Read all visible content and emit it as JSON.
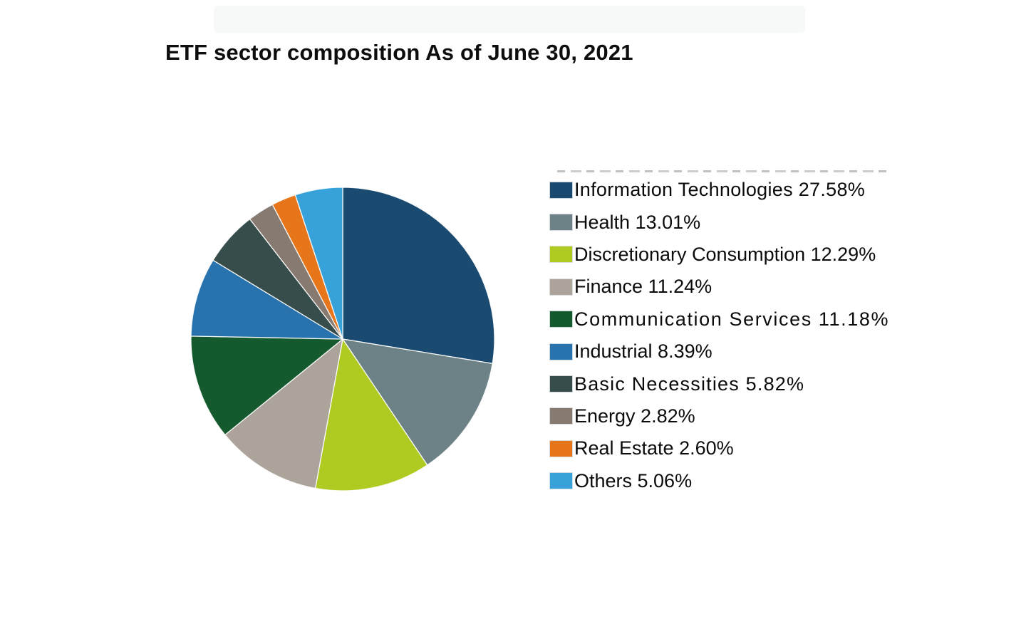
{
  "title": "ETF sector composition As of June 30, 2021",
  "chart_data": {
    "type": "pie",
    "title": "ETF sector composition As of June 30, 2021",
    "unit": "%",
    "start_angle": "12 o'clock",
    "direction": "clockwise",
    "legend_position": "right",
    "categories": [
      "Information Technologies",
      "Health",
      "Discretionary Consumption",
      "Finance",
      "Communication Services",
      "Industrial",
      "Basic Necessities",
      "Energy",
      "Real Estate",
      "Others"
    ],
    "values": [
      27.58,
      13.01,
      12.29,
      11.24,
      11.18,
      8.39,
      5.82,
      2.82,
      2.6,
      5.06
    ],
    "colors": [
      "#1A4A70",
      "#6D8287",
      "#AFCB21",
      "#ACA49A",
      "#155A2E",
      "#2872AD",
      "#364D4B",
      "#877A70",
      "#E7751A",
      "#36A2D9"
    ]
  }
}
